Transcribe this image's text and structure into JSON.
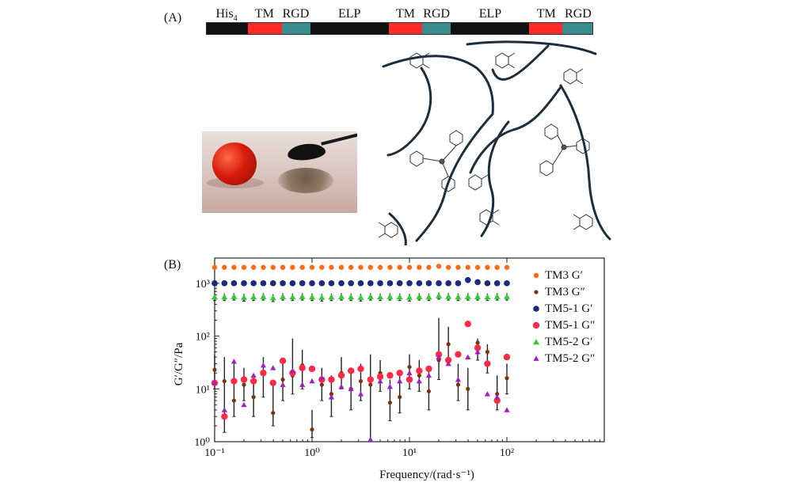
{
  "panel_a": {
    "label": "(A)",
    "construct": {
      "segments": [
        {
          "label": "His",
          "sub": "4",
          "weight": 52,
          "color": "#111111"
        },
        {
          "label": "TM",
          "sub": "",
          "weight": 43,
          "color": "#ff2a2a"
        },
        {
          "label": "RGD",
          "sub": "",
          "weight": 36,
          "color": "#3a8c8c"
        },
        {
          "label": "ELP",
          "sub": "",
          "weight": 99,
          "color": "#111111"
        },
        {
          "label": "TM",
          "sub": "",
          "weight": 42,
          "color": "#ff2a2a"
        },
        {
          "label": "RGD",
          "sub": "",
          "weight": 36,
          "color": "#3a8c8c"
        },
        {
          "label": "ELP",
          "sub": "",
          "weight": 99,
          "color": "#111111"
        },
        {
          "label": "TM",
          "sub": "",
          "weight": 42,
          "color": "#ff2a2a"
        },
        {
          "label": "RGD",
          "sub": "",
          "weight": 38,
          "color": "#3a8c8c"
        }
      ]
    }
  },
  "panel_b": {
    "label": "(B)"
  },
  "chart_data": {
    "type": "scatter",
    "xscale": "log",
    "yscale": "log",
    "xlabel": "Frequency/(rad·s⁻¹)",
    "ylabel": "G′/G″/Pa",
    "xlim": [
      0.1,
      1000
    ],
    "ylim": [
      1,
      3000
    ],
    "xticks": [
      0.1,
      1,
      10,
      100
    ],
    "xtick_labels": [
      "10⁻¹",
      "10⁰",
      "10¹",
      "10²"
    ],
    "yticks": [
      1,
      10,
      100,
      1000
    ],
    "ytick_labels": [
      "10⁰",
      "10¹",
      "10²",
      "10³"
    ],
    "legend_position": "right",
    "x": [
      0.1,
      0.126,
      0.158,
      0.2,
      0.251,
      0.316,
      0.398,
      0.501,
      0.631,
      0.794,
      1.0,
      1.26,
      1.58,
      2.0,
      2.51,
      3.16,
      3.98,
      5.01,
      6.31,
      7.94,
      10.0,
      12.6,
      15.8,
      20.0,
      25.1,
      31.6,
      39.8,
      50.1,
      63.1,
      79.4,
      100.0
    ],
    "series": [
      {
        "name": "TM3 G′",
        "marker": "circle",
        "size": 3.2,
        "color": "#ff6a1a",
        "values": [
          2000,
          2000,
          2000,
          2000,
          2000,
          2000,
          2000,
          2000,
          2000,
          2000,
          2000,
          2000,
          2000,
          2000,
          2000,
          2000,
          2000,
          2000,
          2000,
          2000,
          2000,
          2000,
          2000,
          2100,
          2000,
          2000,
          2000,
          2000,
          2000,
          2000,
          2000
        ]
      },
      {
        "name": "TM3 G″",
        "marker": "circle",
        "size": 2.6,
        "color": "#7a3410",
        "values": [
          23,
          14,
          6,
          12,
          7,
          20,
          3.5,
          15,
          18,
          28,
          1.7,
          12,
          8,
          20,
          10,
          14,
          12,
          20,
          5.5,
          7,
          26,
          18,
          9,
          35,
          70,
          12,
          10,
          75,
          50,
          8,
          16
        ],
        "err_low": [
          10,
          1.5,
          3,
          6,
          3,
          7,
          2,
          6,
          8,
          10,
          1.2,
          6,
          3,
          10,
          4,
          6,
          1.0,
          9,
          2.5,
          3.5,
          10,
          9,
          4,
          15,
          35,
          6,
          4,
          35,
          20,
          4,
          8
        ],
        "err_high": [
          45,
          40,
          30,
          25,
          18,
          40,
          12,
          35,
          90,
          55,
          4,
          25,
          18,
          40,
          25,
          30,
          45,
          35,
          15,
          18,
          45,
          35,
          22,
          220,
          150,
          30,
          25,
          90,
          70,
          18,
          30
        ]
      },
      {
        "name": "TM5-1 G′",
        "marker": "circle",
        "size": 3.8,
        "color": "#1b2a7c",
        "values": [
          1000,
          1000,
          1000,
          1000,
          1000,
          1000,
          1000,
          1000,
          1000,
          1000,
          1000,
          1000,
          1000,
          1000,
          1000,
          1000,
          1000,
          1000,
          1000,
          1000,
          1000,
          1000,
          1000,
          1000,
          1000,
          1000,
          1150,
          1050,
          1000,
          1000,
          1000
        ]
      },
      {
        "name": "TM5-1 G″",
        "marker": "circle",
        "size": 4.2,
        "color": "#ff2a46",
        "values": [
          13,
          3,
          14,
          15,
          14,
          20,
          13,
          34,
          20,
          25,
          24,
          15,
          15,
          18,
          22,
          24,
          15,
          17,
          18,
          20,
          15,
          22,
          24,
          45,
          35,
          45,
          170,
          60,
          30,
          6,
          40
        ]
      },
      {
        "name": "TM5-2 G′",
        "marker": "triangle",
        "size": 4.0,
        "color": "#33cc33",
        "values": [
          550,
          550,
          560,
          540,
          550,
          560,
          530,
          560,
          550,
          560,
          550,
          540,
          550,
          560,
          550,
          540,
          560,
          550,
          560,
          550,
          540,
          560,
          550,
          580,
          560,
          550,
          560,
          560,
          550,
          560,
          560
        ],
        "err_low": [
          470,
          470,
          480,
          460,
          470,
          480,
          450,
          480,
          470,
          480,
          470,
          460,
          470,
          480,
          470,
          460,
          480,
          470,
          480,
          470,
          460,
          480,
          470,
          500,
          480,
          470,
          480,
          480,
          470,
          480,
          480
        ],
        "err_high": [
          640,
          640,
          650,
          630,
          640,
          650,
          620,
          650,
          640,
          650,
          640,
          630,
          640,
          650,
          640,
          630,
          650,
          640,
          650,
          640,
          630,
          650,
          640,
          670,
          650,
          640,
          650,
          650,
          640,
          650,
          650
        ]
      },
      {
        "name": "TM5-2 G″",
        "marker": "triangle",
        "size": 3.6,
        "color": "#a020c0",
        "values": [
          13,
          4,
          33,
          5,
          18,
          28,
          25,
          12,
          22,
          12,
          14,
          16,
          7,
          11,
          10,
          8,
          1.1,
          14,
          11,
          14,
          20,
          14,
          18,
          40,
          30,
          15,
          40,
          50,
          8,
          7,
          4
        ]
      }
    ]
  }
}
